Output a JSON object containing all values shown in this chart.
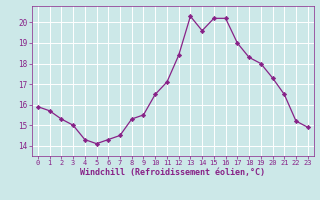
{
  "hours": [
    0,
    1,
    2,
    3,
    4,
    5,
    6,
    7,
    8,
    9,
    10,
    11,
    12,
    13,
    14,
    15,
    16,
    17,
    18,
    19,
    20,
    21,
    22,
    23
  ],
  "windchill": [
    15.9,
    15.7,
    15.3,
    15.0,
    14.3,
    14.1,
    14.3,
    14.5,
    15.3,
    15.5,
    16.5,
    17.1,
    18.4,
    20.3,
    19.6,
    20.2,
    20.2,
    19.0,
    18.3,
    18.0,
    17.3,
    16.5,
    15.2,
    14.9
  ],
  "line_color": "#882288",
  "marker_color": "#882288",
  "bg_color": "#cce8e8",
  "grid_color": "#ffffff",
  "xlabel": "Windchill (Refroidissement éolien,°C)",
  "xlabel_color": "#882288",
  "tick_color": "#882288",
  "ylim": [
    13.5,
    20.8
  ],
  "yticks": [
    14,
    15,
    16,
    17,
    18,
    19,
    20
  ],
  "xticks": [
    0,
    1,
    2,
    3,
    4,
    5,
    6,
    7,
    8,
    9,
    10,
    11,
    12,
    13,
    14,
    15,
    16,
    17,
    18,
    19,
    20,
    21,
    22,
    23
  ],
  "xlim": [
    -0.5,
    23.5
  ]
}
